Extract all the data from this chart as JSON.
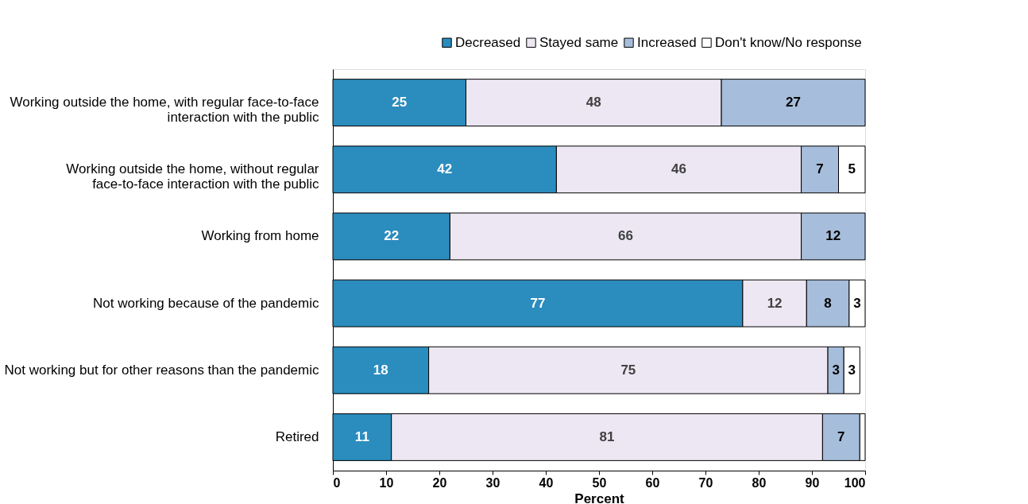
{
  "chart_data": {
    "type": "bar",
    "orientation": "horizontal",
    "stacked": true,
    "xlabel": "Percent",
    "categories": [
      "Working outside the home, with regular face-to-face interaction with the public",
      "Working outside the home, without regular face-to-face interaction with the public",
      "Working from home",
      "Not working because of the pandemic",
      "Not working but for other reasons than the pandemic",
      "Retired"
    ],
    "series": [
      {
        "name": "Decreased",
        "color": "#2b8cbe",
        "values": [
          25,
          42,
          22,
          77,
          18,
          11
        ]
      },
      {
        "name": "Stayed same",
        "color": "#ece7f2",
        "values": [
          48,
          46,
          66,
          12,
          75,
          81
        ]
      },
      {
        "name": "Increased",
        "color": "#a6bddb",
        "values": [
          27,
          7,
          12,
          8,
          3,
          7
        ]
      },
      {
        "name": "Don't know/No response",
        "color": "#ffffff",
        "values": [
          null,
          5,
          null,
          3,
          3,
          1
        ],
        "value_labels": [
          null,
          "5",
          null,
          "3",
          "3",
          null
        ]
      }
    ],
    "data_labels": true,
    "xlim": [
      0,
      100
    ],
    "xticks": [
      0,
      10,
      20,
      30,
      40,
      50,
      60,
      70,
      80,
      90,
      100
    ],
    "grid": false,
    "legend": "top right"
  }
}
